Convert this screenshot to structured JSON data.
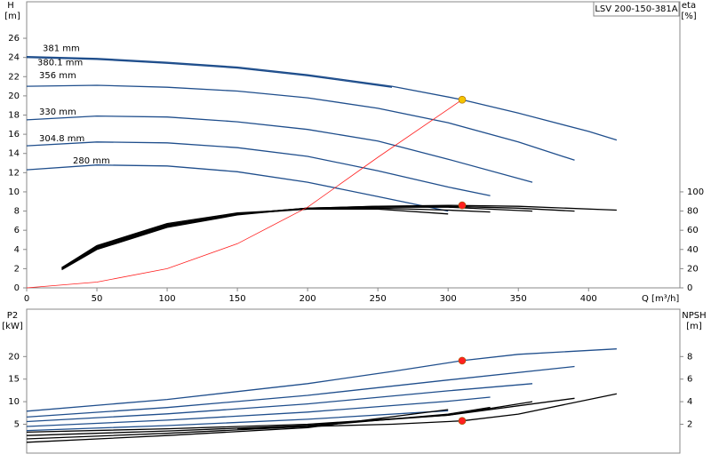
{
  "chart_data": [
    {
      "type": "line",
      "title": "LSV 200-150-381A",
      "ylabel": "H",
      "yunit": "[m]",
      "y2label": "eta",
      "y2unit": "[%]",
      "xlabel": "Q [m³/h]",
      "xlim": [
        0,
        465
      ],
      "xticks": [
        0,
        50,
        100,
        150,
        200,
        250,
        300,
        350,
        400
      ],
      "ylim": [
        0,
        29.8
      ],
      "yticks": [
        0,
        2,
        4,
        6,
        8,
        10,
        12,
        14,
        16,
        18,
        20,
        22,
        24,
        26
      ],
      "y2lim": [
        0,
        298
      ],
      "y2ticks": [
        0,
        20,
        40,
        60,
        80,
        100
      ],
      "series": [
        {
          "name": "381 mm",
          "color": "#1f4e8c",
          "x": [
            0,
            50,
            100,
            150,
            200,
            260,
            310,
            350,
            400,
            420
          ],
          "values": [
            24.1,
            23.9,
            23.5,
            23.0,
            22.2,
            21.0,
            19.6,
            18.2,
            16.3,
            15.4
          ]
        },
        {
          "name": "380.1 mm",
          "color": "#1f4e8c",
          "x": [
            0,
            50,
            100,
            150,
            200,
            260
          ],
          "values": [
            24.0,
            23.8,
            23.4,
            22.9,
            22.1,
            20.9
          ]
        },
        {
          "name": "356 mm",
          "color": "#1f4e8c",
          "x": [
            0,
            50,
            100,
            150,
            200,
            250,
            300,
            350,
            390
          ],
          "values": [
            21.0,
            21.1,
            20.9,
            20.5,
            19.8,
            18.7,
            17.2,
            15.2,
            13.3
          ]
        },
        {
          "name": "330 mm",
          "color": "#1f4e8c",
          "x": [
            0,
            50,
            100,
            150,
            200,
            250,
            300,
            360
          ],
          "values": [
            17.5,
            17.9,
            17.8,
            17.3,
            16.5,
            15.3,
            13.4,
            11.0
          ]
        },
        {
          "name": "304.8 mm",
          "color": "#1f4e8c",
          "x": [
            0,
            50,
            100,
            150,
            200,
            250,
            300,
            330
          ],
          "values": [
            14.8,
            15.2,
            15.1,
            14.6,
            13.7,
            12.2,
            10.5,
            9.6
          ]
        },
        {
          "name": "280 mm",
          "color": "#1f4e8c",
          "x": [
            0,
            50,
            100,
            150,
            200,
            250,
            300
          ],
          "values": [
            12.3,
            12.8,
            12.7,
            12.1,
            11.0,
            9.5,
            8.0
          ]
        },
        {
          "color": "#000000",
          "axis": "y2",
          "x": [
            25,
            50,
            100,
            150,
            200,
            250,
            300,
            350,
            420
          ],
          "values": [
            19,
            40,
            63,
            76,
            83,
            85,
            86,
            85,
            81
          ]
        },
        {
          "color": "#000000",
          "axis": "y2",
          "x": [
            25,
            50,
            100,
            150,
            200,
            250,
            300,
            350,
            390
          ],
          "values": [
            20,
            41,
            64,
            77,
            83,
            85,
            85,
            83,
            80
          ]
        },
        {
          "color": "#000000",
          "axis": "y2",
          "x": [
            25,
            50,
            100,
            150,
            200,
            250,
            300,
            360
          ],
          "values": [
            20,
            42,
            65,
            77,
            83,
            84,
            84,
            80
          ]
        },
        {
          "color": "#000000",
          "axis": "y2",
          "x": [
            25,
            50,
            100,
            150,
            200,
            250,
            300,
            330
          ],
          "values": [
            21,
            43,
            66,
            77,
            82,
            83,
            81,
            79
          ]
        },
        {
          "color": "#000000",
          "axis": "y2",
          "x": [
            25,
            50,
            100,
            150,
            200,
            250,
            300
          ],
          "values": [
            21,
            44,
            67,
            78,
            82,
            82,
            77
          ]
        },
        {
          "color": "#ff2020",
          "x": [
            0,
            50,
            100,
            150,
            200,
            250,
            310
          ],
          "values": [
            0,
            0.6,
            2.0,
            4.6,
            8.4,
            13.6,
            19.6
          ]
        },
        {
          "color": "#f5c400",
          "marker": true,
          "x": [
            310
          ],
          "values": [
            19.6
          ]
        },
        {
          "color": "#ff2020",
          "marker": true,
          "axis": "y2",
          "x": [
            310
          ],
          "values": [
            86
          ]
        }
      ]
    },
    {
      "type": "line",
      "ylabel": "P2",
      "yunit": "[kW]",
      "y2label": "NPSH",
      "y2unit": "[m]",
      "xlim": [
        0,
        465
      ],
      "ylim": [
        -1.4,
        30.5
      ],
      "yticks": [
        5,
        10,
        15,
        20
      ],
      "y2lim": [
        -0.56,
        12.2
      ],
      "y2ticks": [
        2,
        4,
        6,
        8
      ],
      "series": [
        {
          "color": "#1f4e8c",
          "x": [
            0,
            100,
            200,
            260,
            310,
            350,
            420
          ],
          "values": [
            7.9,
            10.5,
            14.0,
            16.7,
            19.1,
            20.5,
            21.7
          ]
        },
        {
          "color": "#1f4e8c",
          "x": [
            0,
            100,
            200,
            300,
            390
          ],
          "values": [
            6.6,
            8.7,
            11.4,
            14.8,
            17.8
          ]
        },
        {
          "color": "#1f4e8c",
          "x": [
            0,
            100,
            200,
            300,
            360
          ],
          "values": [
            5.6,
            7.3,
            9.5,
            12.4,
            14.0
          ]
        },
        {
          "color": "#1f4e8c",
          "x": [
            0,
            100,
            200,
            300,
            330
          ],
          "values": [
            4.5,
            5.9,
            7.7,
            10.1,
            11.0
          ]
        },
        {
          "color": "#1f4e8c",
          "x": [
            0,
            100,
            200,
            300
          ],
          "values": [
            3.6,
            4.7,
            6.1,
            8.0
          ]
        },
        {
          "color": "#000000",
          "axis": "y2",
          "x": [
            150,
            200,
            260,
            310,
            350,
            420
          ],
          "values": [
            1.6,
            1.8,
            2.0,
            2.3,
            2.9,
            4.7
          ]
        },
        {
          "color": "#000000",
          "axis": "y2",
          "x": [
            0,
            100,
            200,
            300,
            390
          ],
          "values": [
            1.3,
            1.6,
            2.0,
            2.8,
            4.3
          ]
        },
        {
          "color": "#000000",
          "axis": "y2",
          "x": [
            0,
            100,
            200,
            300,
            360
          ],
          "values": [
            1.0,
            1.4,
            1.9,
            2.8,
            4.0
          ]
        },
        {
          "color": "#000000",
          "axis": "y2",
          "x": [
            0,
            100,
            200,
            300,
            330
          ],
          "values": [
            0.7,
            1.2,
            1.8,
            2.9,
            3.5
          ]
        },
        {
          "color": "#000000",
          "axis": "y2",
          "x": [
            0,
            100,
            200,
            300
          ],
          "values": [
            0.4,
            1.0,
            1.7,
            3.3
          ]
        },
        {
          "color": "#ff2020",
          "marker": true,
          "x": [
            310
          ],
          "values": [
            19.1
          ]
        },
        {
          "color": "#ff2020",
          "marker": true,
          "axis": "y2",
          "x": [
            310
          ],
          "values": [
            2.3
          ]
        }
      ]
    }
  ]
}
